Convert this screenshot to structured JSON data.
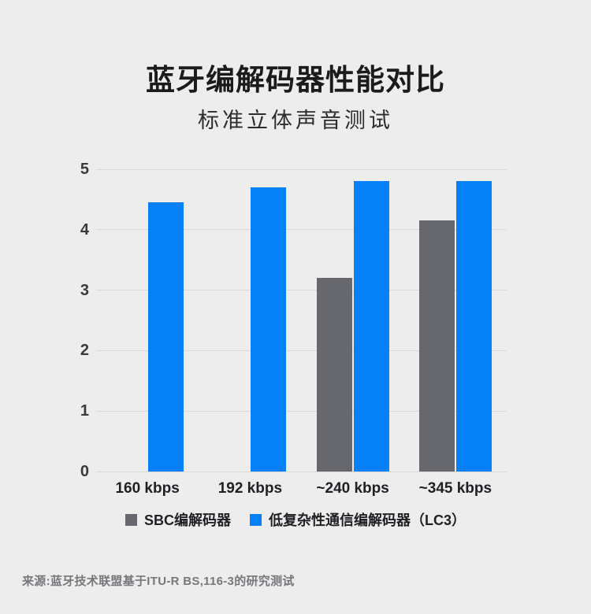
{
  "page": {
    "title": "蓝牙编解码器性能对比",
    "subtitle": "标准立体声音测试",
    "source": "来源:蓝牙技术联盟基于ITU-R BS,116-3的研究测试"
  },
  "colors": {
    "background": "#ededee",
    "gridline": "#d9d9da",
    "sbc_gray": "#66686d",
    "lc3_blue": "#0680f6"
  },
  "chart_data": {
    "type": "bar",
    "title": "蓝牙编解码器性能对比",
    "subtitle": "标准立体声音测试",
    "categories": [
      "160 kbps",
      "192 kbps",
      "~240 kbps",
      "~345 kbps"
    ],
    "series": [
      {
        "name": "SBC编解码器",
        "color_key": "sbc_gray",
        "values": [
          null,
          null,
          3.2,
          4.15
        ]
      },
      {
        "name": "低复杂性通信编解码器（LC3）",
        "color_key": "lc3_blue",
        "values": [
          4.45,
          4.7,
          4.8,
          4.8
        ]
      }
    ],
    "y_ticks": [
      0,
      1,
      2,
      3,
      4,
      5
    ],
    "ylim": [
      0,
      5
    ],
    "xlabel": "",
    "ylabel": "",
    "grid": true,
    "legend_position": "bottom"
  }
}
